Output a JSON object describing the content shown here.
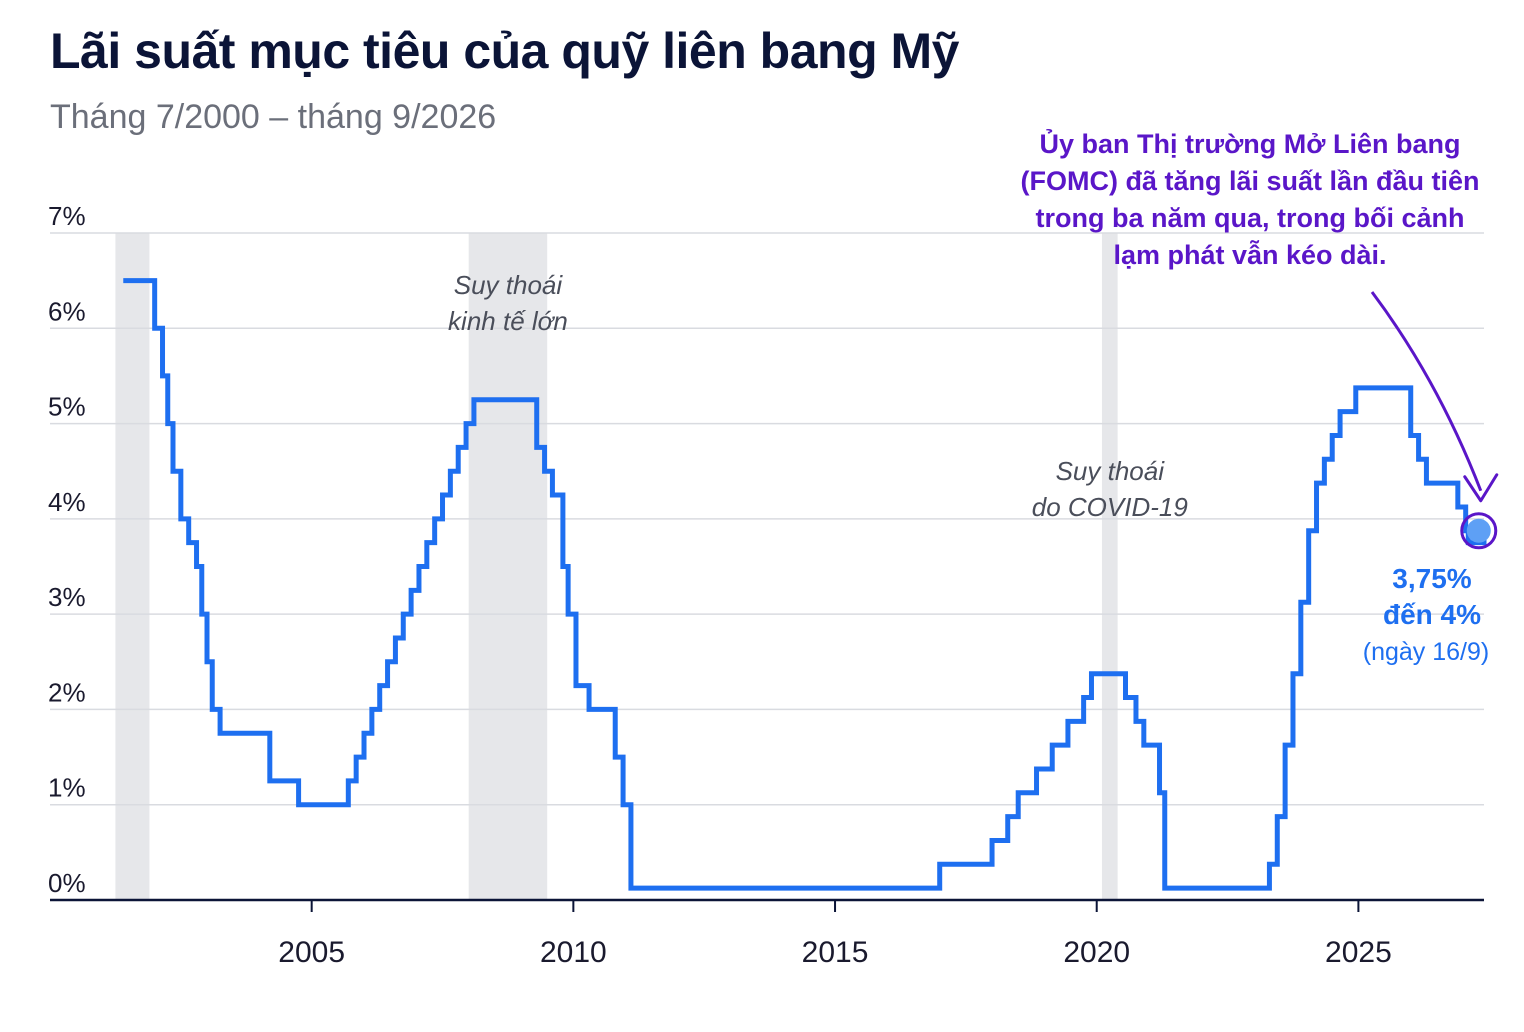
{
  "header": {
    "title": "Lãi suất mục tiêu của quỹ liên bang Mỹ",
    "subtitle": "Tháng 7/2000 – tháng 9/2026"
  },
  "colors": {
    "line": "#1e6ff0",
    "recession": "#e6e7ea",
    "annotation": "#5a16c8",
    "grid": "#d9dbe0",
    "axis": "#0b1437"
  },
  "chart_data": {
    "type": "line",
    "title": "Lãi suất mục tiêu của quỹ liên bang Mỹ",
    "subtitle": "Tháng 7/2000 – tháng 9/2026",
    "xlabel": "",
    "ylabel": "",
    "xlim": [
      2000.0,
      2027.4
    ],
    "ylim": [
      0,
      7
    ],
    "x_ticks": [
      {
        "value": 2005,
        "label": "2005"
      },
      {
        "value": 2010,
        "label": "2010"
      },
      {
        "value": 2015,
        "label": "2015"
      },
      {
        "value": 2020,
        "label": "2020"
      },
      {
        "value": 2025,
        "label": "2025"
      }
    ],
    "y_ticks": [
      {
        "value": 0,
        "label": "0%"
      },
      {
        "value": 1,
        "label": "1%"
      },
      {
        "value": 2,
        "label": "2%"
      },
      {
        "value": 3,
        "label": "3%"
      },
      {
        "value": 4,
        "label": "4%"
      },
      {
        "value": 5,
        "label": "5%"
      },
      {
        "value": 6,
        "label": "6%"
      },
      {
        "value": 7,
        "label": "7%"
      }
    ],
    "grid": true,
    "legend": "none",
    "series": [
      {
        "values_are": "step: [decimal year, target rate %]",
        "points": [
          [
            2001.4,
            6.5
          ],
          [
            2002.0,
            6.0
          ],
          [
            2002.15,
            5.5
          ],
          [
            2002.25,
            5.0
          ],
          [
            2002.35,
            4.5
          ],
          [
            2002.5,
            4.0
          ],
          [
            2002.65,
            3.75
          ],
          [
            2002.8,
            3.5
          ],
          [
            2002.9,
            3.0
          ],
          [
            2003.0,
            2.5
          ],
          [
            2003.1,
            2.0
          ],
          [
            2003.25,
            1.75
          ],
          [
            2004.2,
            1.25
          ],
          [
            2004.75,
            1.0
          ],
          [
            2005.7,
            1.25
          ],
          [
            2005.85,
            1.5
          ],
          [
            2006.0,
            1.75
          ],
          [
            2006.15,
            2.0
          ],
          [
            2006.3,
            2.25
          ],
          [
            2006.45,
            2.5
          ],
          [
            2006.6,
            2.75
          ],
          [
            2006.75,
            3.0
          ],
          [
            2006.9,
            3.25
          ],
          [
            2007.05,
            3.5
          ],
          [
            2007.2,
            3.75
          ],
          [
            2007.35,
            4.0
          ],
          [
            2007.5,
            4.25
          ],
          [
            2007.65,
            4.5
          ],
          [
            2007.8,
            4.75
          ],
          [
            2007.95,
            5.0
          ],
          [
            2008.1,
            5.25
          ],
          [
            2009.3,
            4.75
          ],
          [
            2009.45,
            4.5
          ],
          [
            2009.6,
            4.25
          ],
          [
            2009.8,
            3.5
          ],
          [
            2009.9,
            3.0
          ],
          [
            2010.05,
            2.25
          ],
          [
            2010.3,
            2.0
          ],
          [
            2010.8,
            1.5
          ],
          [
            2010.95,
            1.0
          ],
          [
            2011.1,
            0.125
          ],
          [
            2017.0,
            0.375
          ],
          [
            2018.0,
            0.625
          ],
          [
            2018.3,
            0.875
          ],
          [
            2018.5,
            1.125
          ],
          [
            2018.85,
            1.375
          ],
          [
            2019.15,
            1.625
          ],
          [
            2019.45,
            1.875
          ],
          [
            2019.75,
            2.125
          ],
          [
            2019.9,
            2.375
          ],
          [
            2020.55,
            2.125
          ],
          [
            2020.75,
            1.875
          ],
          [
            2020.9,
            1.625
          ],
          [
            2021.2,
            1.125
          ],
          [
            2021.3,
            0.125
          ],
          [
            2023.3,
            0.375
          ],
          [
            2023.45,
            0.875
          ],
          [
            2023.6,
            1.625
          ],
          [
            2023.75,
            2.375
          ],
          [
            2023.9,
            3.125
          ],
          [
            2024.05,
            3.875
          ],
          [
            2024.2,
            4.375
          ],
          [
            2024.35,
            4.625
          ],
          [
            2024.5,
            4.875
          ],
          [
            2024.65,
            5.125
          ],
          [
            2024.95,
            5.375
          ],
          [
            2026.0,
            4.875
          ],
          [
            2026.15,
            4.625
          ],
          [
            2026.3,
            4.375
          ],
          [
            2026.9,
            4.125
          ],
          [
            2027.05,
            3.875
          ],
          [
            2027.1,
            3.75
          ],
          [
            2027.4,
            3.875
          ]
        ]
      }
    ],
    "recessions": [
      {
        "start": 2001.25,
        "end": 2001.9,
        "label": [
          "",
          ""
        ]
      },
      {
        "start": 2008.0,
        "end": 2009.5,
        "label": [
          "Suy thoái",
          "kinh tế lớn"
        ]
      },
      {
        "start": 2020.1,
        "end": 2020.4,
        "label": [
          "Suy thoái",
          "do COVID-19"
        ]
      }
    ],
    "annotation": {
      "lines": [
        "Ủy ban Thị trường Mở Liên bang",
        "(FOMC) đã tăng lãi suất lần đầu tiên",
        "trong ba năm qua, trong bối cảnh",
        "lạm phát vẫn kéo dài."
      ]
    },
    "end_value": {
      "x": 2027.3,
      "y": 3.875,
      "lines": [
        "3,75%",
        "đến 4%"
      ],
      "note": "(ngày 16/9)"
    }
  }
}
